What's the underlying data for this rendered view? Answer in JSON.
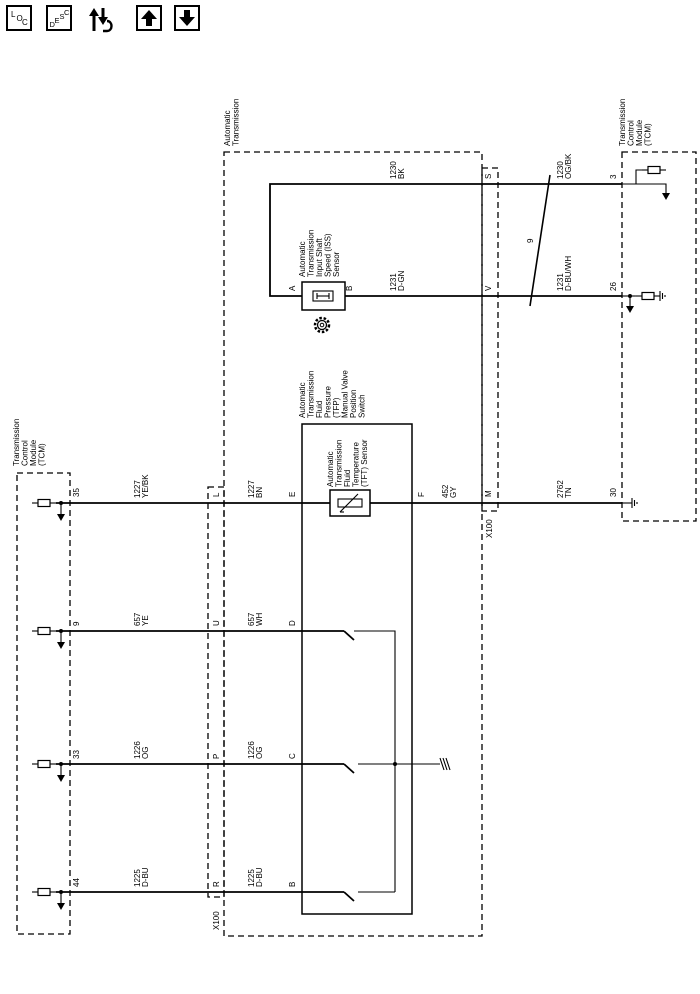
{
  "toolbar": {
    "loc_button": {
      "l": "L",
      "o": "O",
      "c": "C"
    },
    "desc_button": {
      "d": "D",
      "e": "E",
      "s": "S",
      "c": "C"
    }
  },
  "diagram": {
    "left_tcm_label": [
      "Transmission",
      "Control",
      "Module",
      "(TCM)"
    ],
    "right_tcm_label": [
      "Transmission",
      "Control",
      "Module",
      "(TCM)"
    ],
    "automatic_transmission_label": [
      "Automatic",
      "Transmission"
    ],
    "iss_sensor_label": [
      "Automatic",
      "Transmission",
      "Input Shaft",
      "Speed (ISS)",
      "Sensor"
    ],
    "tfp_switch_label": [
      "Automatic",
      "Transmission",
      "Fluid",
      "Pressure",
      "(TFP)",
      "Manual Valve",
      "Position",
      "Switch"
    ],
    "tft_sensor_label": [
      "Automatic",
      "Transmission",
      "Fluid",
      "Temperature",
      "(TFT) Sensor"
    ],
    "connector_x100_left": "X100",
    "connector_x100_right": "X100",
    "twisted_pair_label": "9",
    "left_pins": [
      "35",
      "9",
      "33",
      "44"
    ],
    "x100_left_pins": [
      "L",
      "U",
      "P",
      "R"
    ],
    "switch_pins": [
      "E",
      "D",
      "C",
      "B"
    ],
    "tft_pin_f": "F",
    "x100_right_pins": [
      "S",
      "V",
      "M"
    ],
    "iss_pins": [
      "A",
      "B"
    ],
    "right_pins": [
      "3",
      "26",
      "30"
    ],
    "wires_left_outer": [
      {
        "num": "1227",
        "color": "YE/BK"
      },
      {
        "num": "657",
        "color": "YE"
      },
      {
        "num": "1226",
        "color": "OG"
      },
      {
        "num": "1225",
        "color": "D-BU"
      }
    ],
    "wires_left_inner": [
      {
        "num": "1227",
        "color": "BN"
      },
      {
        "num": "657",
        "color": "WH"
      },
      {
        "num": "1226",
        "color": "OG"
      },
      {
        "num": "1225",
        "color": "D-BU"
      }
    ],
    "wire_tft_out": {
      "num": "452",
      "color": "GY"
    },
    "wire_iss_a": {
      "num": "1230",
      "color": "BK"
    },
    "wire_iss_b": {
      "num": "1231",
      "color": "D-GN"
    },
    "wire_tcm_3": {
      "num": "1230",
      "color": "OG/BK"
    },
    "wire_tcm_26": {
      "num": "1231",
      "color": "D-BU/WH"
    },
    "wire_tcm_30": {
      "num": "2762",
      "color": "TN"
    }
  }
}
